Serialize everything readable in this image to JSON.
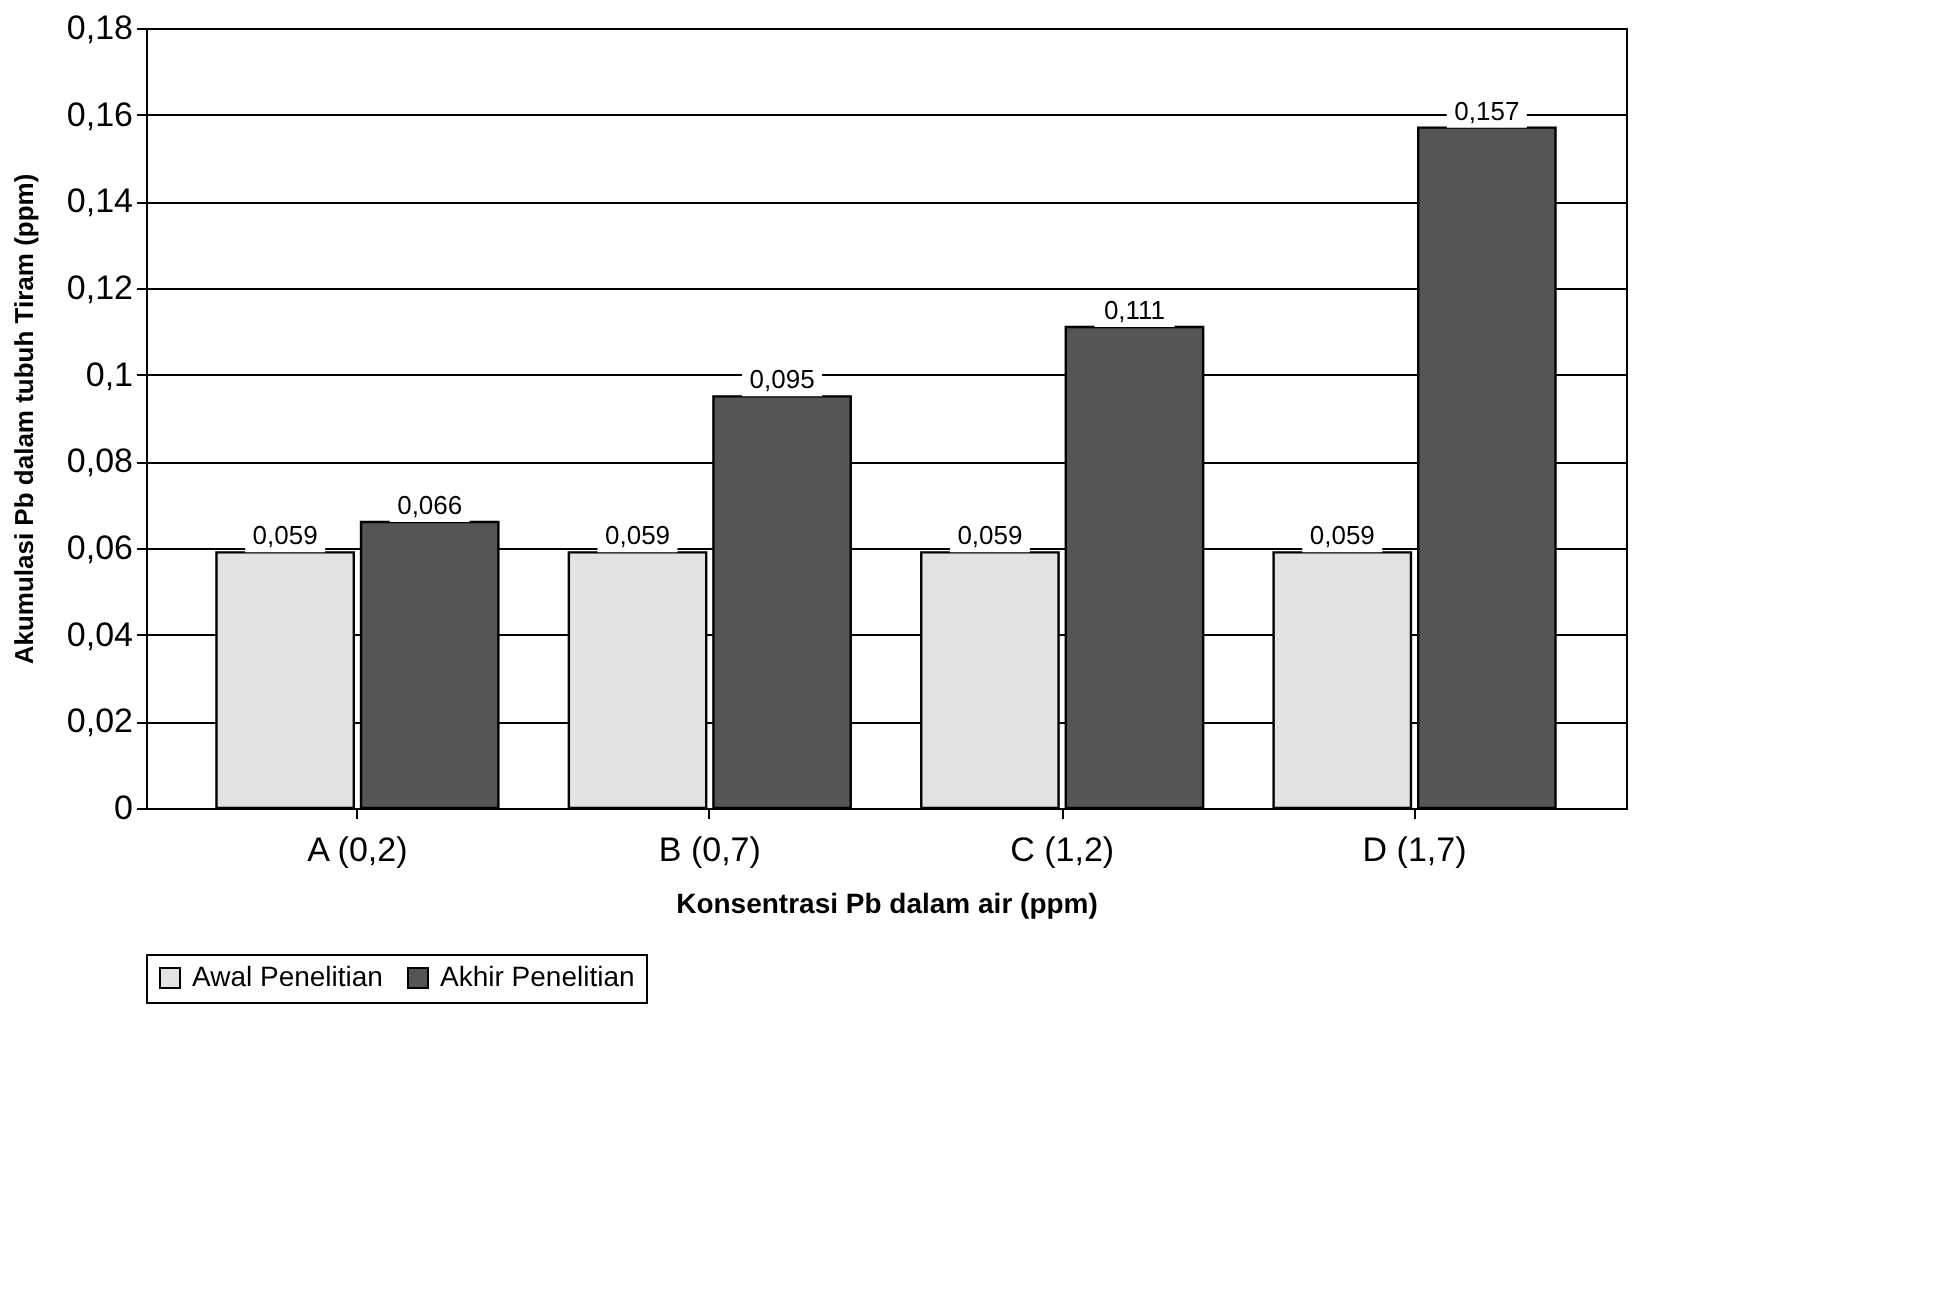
{
  "chart_data": {
    "type": "bar",
    "xlabel": "Konsentrasi Pb dalam air (ppm)",
    "ylabel": "Akumulasi Pb dalam tubuh Tiram (ppm)",
    "categories": [
      "A (0,2)",
      "B (0,7)",
      "C (1,2)",
      "D (1,7)"
    ],
    "series": [
      {
        "name": "Awal Penelitian",
        "color": "#e3e3e3",
        "values": [
          0.059,
          0.059,
          0.059,
          0.059
        ],
        "value_labels": [
          "0,059",
          "0,059",
          "0,059",
          "0,059"
        ]
      },
      {
        "name": "Akhir Penelitian",
        "color": "#555555",
        "values": [
          0.066,
          0.095,
          0.111,
          0.157
        ],
        "value_labels": [
          "0,066",
          "0,095",
          "0,111",
          "0,157"
        ]
      }
    ],
    "ylim": [
      0,
      0.18
    ],
    "yticks": [
      0,
      {
        "value": 0.02,
        "label": "0,02"
      },
      {
        "value": 0.04,
        "label": "0,04"
      },
      {
        "value": 0.06,
        "label": "0,06"
      },
      {
        "value": 0.08,
        "label": "0,08"
      },
      {
        "value": 0.1,
        "label": "0,1"
      },
      {
        "value": 0.12,
        "label": "0,12"
      },
      {
        "value": 0.14,
        "label": "0,14"
      },
      {
        "value": 0.16,
        "label": "0,16"
      },
      {
        "value": 0.18,
        "label": "0,18"
      }
    ],
    "grid": "y",
    "legend": "bottom"
  }
}
